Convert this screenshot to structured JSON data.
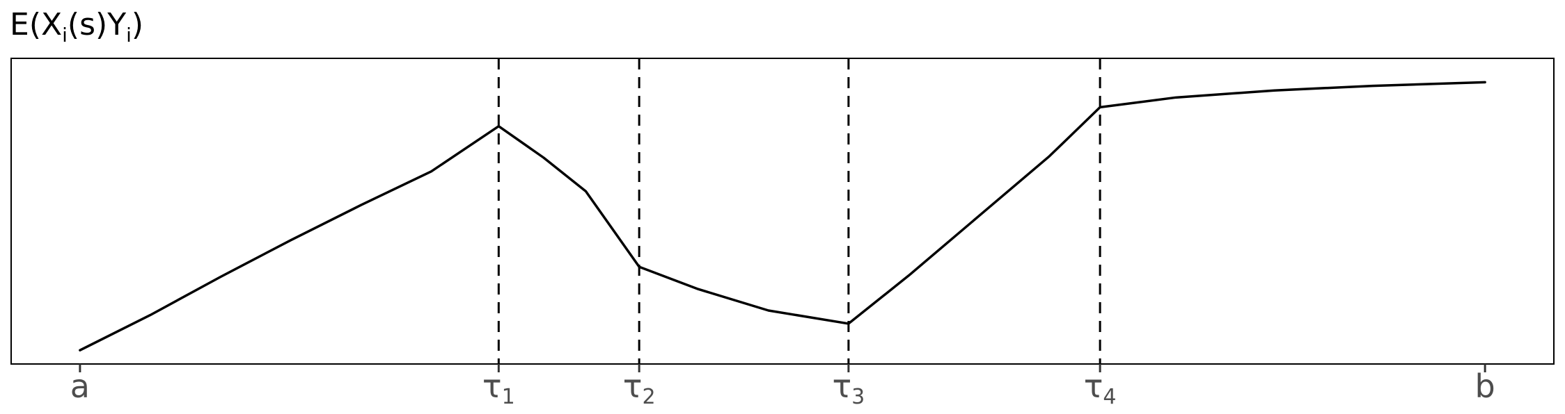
{
  "chart_data": {
    "type": "line",
    "title": {
      "base": "E",
      "open": "(",
      "x": "X",
      "x_sub": "i",
      "mid": "(s)",
      "y": "Y",
      "y_sub": "i",
      "close": ")"
    },
    "xlabel": "",
    "ylabel": "",
    "grid": false,
    "legend": "none",
    "x_ticks": [
      {
        "label": "a",
        "sub": "",
        "value": 0.0
      },
      {
        "label": "τ",
        "sub": "1",
        "value": 0.298
      },
      {
        "label": "τ",
        "sub": "2",
        "value": 0.398
      },
      {
        "label": "τ",
        "sub": "3",
        "value": 0.547
      },
      {
        "label": "τ",
        "sub": "4",
        "value": 0.726
      },
      {
        "label": "b",
        "sub": "",
        "value": 1.0
      }
    ],
    "breakpoints": [
      0.298,
      0.398,
      0.547,
      0.726
    ],
    "xlim": [
      -0.049,
      1.049
    ],
    "ylim": [
      0.0,
      1.0
    ],
    "series": [
      {
        "x": [
          0.0,
          0.05,
          0.1,
          0.15,
          0.2,
          0.25,
          0.298,
          0.33,
          0.36,
          0.398,
          0.44,
          0.49,
          0.547,
          0.59,
          0.64,
          0.69,
          0.726,
          0.78,
          0.85,
          0.92,
          1.0
        ],
        "y": [
          0.045,
          0.16,
          0.285,
          0.405,
          0.52,
          0.63,
          0.778,
          0.675,
          0.565,
          0.318,
          0.245,
          0.175,
          0.132,
          0.29,
          0.485,
          0.68,
          0.84,
          0.872,
          0.895,
          0.91,
          0.922
        ]
      }
    ],
    "line_color": "#000000",
    "vline_style": "dashed"
  }
}
